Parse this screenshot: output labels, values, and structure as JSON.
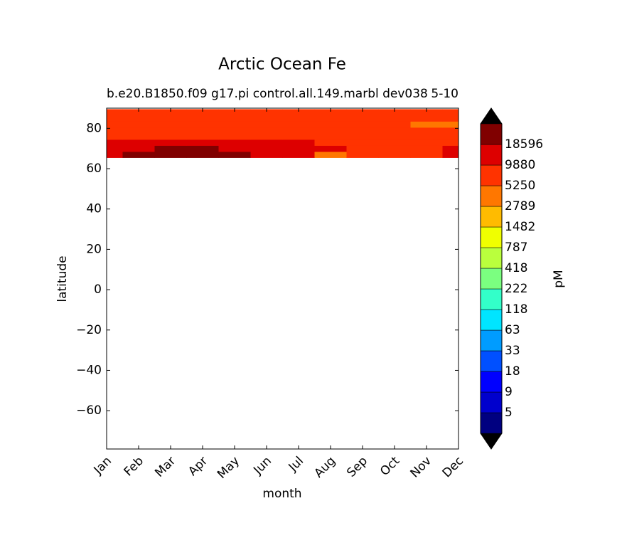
{
  "chart_data": {
    "type": "contourf",
    "title": "Arctic Ocean Fe",
    "subtitle_left": "b.e20.B1850.f09 g17.pi control.all.149.marbl dev038",
    "subtitle_right": "5-10",
    "x_label": "month",
    "y_label": "latitude",
    "colorbar_label": "pM",
    "categories": [
      "Jan",
      "Feb",
      "Mar",
      "Apr",
      "May",
      "Jun",
      "Jul",
      "Aug",
      "Sep",
      "Oct",
      "Nov",
      "Dec"
    ],
    "y": [
      67,
      70,
      73,
      76,
      79,
      82,
      85,
      88
    ],
    "z": [
      [
        11000,
        20000,
        20000,
        20000,
        20000,
        11000,
        11000,
        4000,
        7000,
        7000,
        7000,
        11000
      ],
      [
        11000,
        11000,
        20000,
        20000,
        11000,
        11000,
        11000,
        11000,
        7000,
        7000,
        7000,
        11000
      ],
      [
        11000,
        11000,
        11000,
        11000,
        11000,
        11000,
        11000,
        7000,
        7000,
        7000,
        7000,
        7000
      ],
      [
        7000,
        7000,
        7000,
        7000,
        7000,
        7000,
        7000,
        7000,
        7000,
        7000,
        7000,
        7000
      ],
      [
        7000,
        7000,
        7000,
        7000,
        7000,
        7000,
        7000,
        7000,
        7000,
        7000,
        7000,
        7000
      ],
      [
        7000,
        7000,
        7000,
        7000,
        7000,
        7000,
        7000,
        7000,
        7000,
        7000,
        4000,
        4000
      ],
      [
        7000,
        7000,
        7000,
        7000,
        7000,
        7000,
        7000,
        7000,
        7000,
        7000,
        7000,
        7000
      ],
      [
        7000,
        7000,
        7000,
        7000,
        7000,
        7000,
        7000,
        7000,
        7000,
        7000,
        7000,
        7000
      ]
    ],
    "ylim": [
      -79,
      90
    ],
    "yticks": [
      {
        "value": -60,
        "label": "−60"
      },
      {
        "value": -40,
        "label": "−40"
      },
      {
        "value": -20,
        "label": "−20"
      },
      0,
      20,
      40,
      60,
      80
    ],
    "levels": [
      5,
      9,
      18,
      33,
      63,
      118,
      222,
      418,
      787,
      1482,
      2789,
      5250,
      9880,
      18596
    ],
    "colors": [
      "#000080",
      "#0000cd",
      "#0000ff",
      "#0050ff",
      "#009cff",
      "#00e5ff",
      "#33ffc9",
      "#7bff80",
      "#baff3d",
      "#f0ff00",
      "#ffbb00",
      "#ff7700",
      "#ff3300",
      "#dd0000",
      "#800000"
    ],
    "extend_color": "#000000"
  }
}
